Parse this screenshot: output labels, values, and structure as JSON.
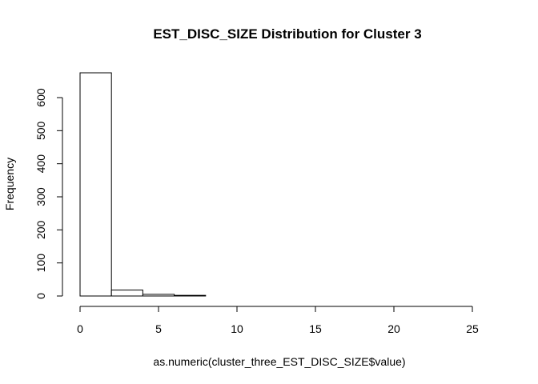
{
  "chart_data": {
    "type": "bar",
    "title": "EST_DISC_SIZE Distribution for Cluster 3",
    "xlabel": "as.numeric(cluster_three_EST_DISC_SIZE$value)",
    "ylabel": "Frequency",
    "bins": [
      {
        "from": 0,
        "to": 2,
        "count": 675
      },
      {
        "from": 2,
        "to": 4,
        "count": 18
      },
      {
        "from": 4,
        "to": 6,
        "count": 5
      },
      {
        "from": 6,
        "to": 8,
        "count": 2
      },
      {
        "from": 8,
        "to": 10,
        "count": 0
      },
      {
        "from": 10,
        "to": 12,
        "count": 0
      },
      {
        "from": 12,
        "to": 14,
        "count": 0
      },
      {
        "from": 14,
        "to": 16,
        "count": 0
      },
      {
        "from": 16,
        "to": 18,
        "count": 0
      },
      {
        "from": 18,
        "to": 20,
        "count": 0
      },
      {
        "from": 20,
        "to": 22,
        "count": 0
      },
      {
        "from": 22,
        "to": 24,
        "count": 0
      },
      {
        "from": 24,
        "to": 26,
        "count": 0
      }
    ],
    "xlim": [
      0,
      26
    ],
    "ylim": [
      0,
      675
    ],
    "x_ticks": [
      "0",
      "5",
      "10",
      "15",
      "20",
      "25"
    ],
    "y_ticks": [
      "0",
      "100",
      "200",
      "300",
      "400",
      "500",
      "600"
    ],
    "grid": false,
    "legend": "none"
  }
}
